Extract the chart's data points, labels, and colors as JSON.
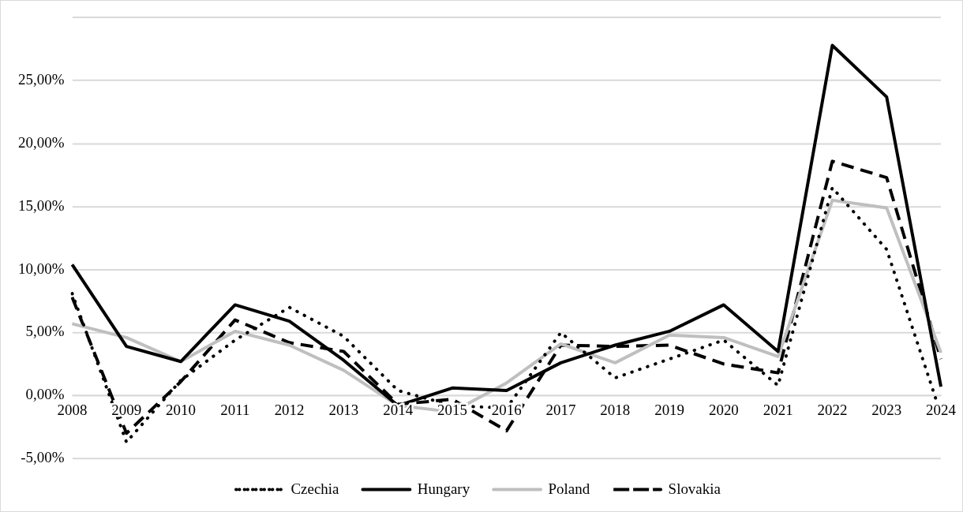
{
  "chart_data": {
    "type": "line",
    "categories": [
      "2008",
      "2009",
      "2010",
      "2011",
      "2012",
      "2013",
      "2014",
      "2015",
      "2016",
      "2017",
      "2018",
      "2019",
      "2020",
      "2021",
      "2022",
      "2023",
      "2024"
    ],
    "series": [
      {
        "name": "Czechia",
        "color": "#000000",
        "line_style": "dotted",
        "values": [
          8.1,
          -3.7,
          1.2,
          4.4,
          7.0,
          4.7,
          0.4,
          -0.8,
          -1.0,
          5.0,
          1.4,
          2.9,
          4.4,
          0.8,
          16.5,
          11.6,
          -1.5
        ]
      },
      {
        "name": "Hungary",
        "color": "#000000",
        "line_style": "solid",
        "values": [
          10.4,
          3.9,
          2.7,
          7.2,
          5.9,
          2.8,
          -0.8,
          0.6,
          0.4,
          2.6,
          4.0,
          5.1,
          7.2,
          3.5,
          27.8,
          23.7,
          0.7
        ]
      },
      {
        "name": "Poland",
        "color": "#bfbfbf",
        "line_style": "solid",
        "values": [
          5.7,
          4.6,
          2.7,
          5.1,
          4.0,
          2.0,
          -0.8,
          -1.3,
          1.0,
          4.1,
          2.6,
          4.8,
          4.6,
          3.1,
          15.5,
          14.9,
          3.4
        ]
      },
      {
        "name": "Slovakia",
        "color": "#000000",
        "line_style": "dashed",
        "values": [
          7.8,
          -3.0,
          1.1,
          6.0,
          4.2,
          3.5,
          -0.7,
          -0.3,
          -2.8,
          4.0,
          3.9,
          4.0,
          2.5,
          1.8,
          18.6,
          17.3,
          2.9
        ]
      }
    ],
    "ylim": [
      -5,
      30
    ],
    "yticks": [
      {
        "value": -5,
        "label": "-5,00%"
      },
      {
        "value": 0,
        "label": "0,00%"
      },
      {
        "value": 5,
        "label": "5,00%"
      },
      {
        "value": 10,
        "label": "10,00%"
      },
      {
        "value": 15,
        "label": "15,00%"
      },
      {
        "value": 20,
        "label": "20,00%"
      },
      {
        "value": 25,
        "label": "25,00%"
      },
      {
        "value": 30,
        "label": null
      }
    ],
    "grid": "y",
    "legend": "bottom",
    "marker": "none"
  }
}
